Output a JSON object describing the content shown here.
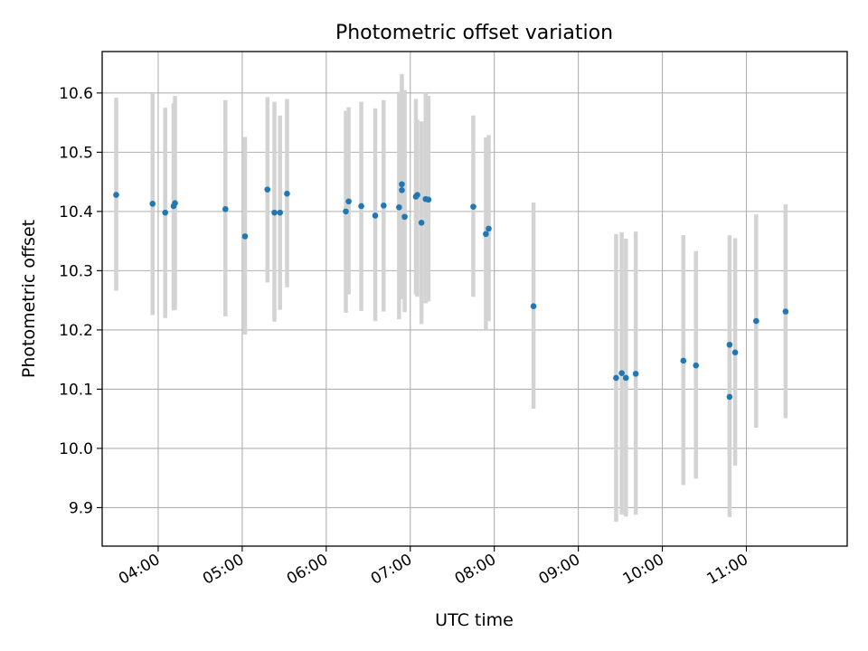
{
  "chart_data": {
    "type": "scatter",
    "title": "Photometric offset variation",
    "xlabel": "UTC time",
    "ylabel": "Photometric offset",
    "grid": true,
    "xlim": [
      "03:20",
      "12:12"
    ],
    "ylim": [
      9.835,
      10.67
    ],
    "x_ticks": [
      "04:00",
      "05:00",
      "06:00",
      "07:00",
      "08:00",
      "09:00",
      "10:00",
      "11:00"
    ],
    "y_ticks": [
      "9.9",
      "10.0",
      "10.1",
      "10.2",
      "10.3",
      "10.4",
      "10.5",
      "10.6"
    ],
    "series": [
      {
        "marker_color": "#1f77b4",
        "errorbar_color": "#d3d3d3",
        "points": [
          {
            "x": "03:30",
            "y": 10.428,
            "ymin": 10.266,
            "ymax": 10.592
          },
          {
            "x": "03:56",
            "y": 10.413,
            "ymin": 10.225,
            "ymax": 10.6
          },
          {
            "x": "04:05",
            "y": 10.398,
            "ymin": 10.22,
            "ymax": 10.575
          },
          {
            "x": "04:11",
            "y": 10.409,
            "ymin": 10.233,
            "ymax": 10.583
          },
          {
            "x": "04:12",
            "y": 10.414,
            "ymin": 10.234,
            "ymax": 10.595
          },
          {
            "x": "04:48",
            "y": 10.404,
            "ymin": 10.223,
            "ymax": 10.588
          },
          {
            "x": "05:02",
            "y": 10.358,
            "ymin": 10.192,
            "ymax": 10.526
          },
          {
            "x": "05:18",
            "y": 10.437,
            "ymin": 10.28,
            "ymax": 10.593
          },
          {
            "x": "05:23",
            "y": 10.398,
            "ymin": 10.214,
            "ymax": 10.585
          },
          {
            "x": "05:27",
            "y": 10.398,
            "ymin": 10.234,
            "ymax": 10.562
          },
          {
            "x": "05:32",
            "y": 10.43,
            "ymin": 10.272,
            "ymax": 10.59
          },
          {
            "x": "06:14",
            "y": 10.4,
            "ymin": 10.229,
            "ymax": 10.57
          },
          {
            "x": "06:16",
            "y": 10.417,
            "ymin": 10.26,
            "ymax": 10.576
          },
          {
            "x": "06:25",
            "y": 10.409,
            "ymin": 10.232,
            "ymax": 10.585
          },
          {
            "x": "06:35",
            "y": 10.393,
            "ymin": 10.215,
            "ymax": 10.574
          },
          {
            "x": "06:41",
            "y": 10.41,
            "ymin": 10.231,
            "ymax": 10.588
          },
          {
            "x": "06:52",
            "y": 10.407,
            "ymin": 10.218,
            "ymax": 10.602
          },
          {
            "x": "06:54",
            "y": 10.446,
            "ymin": 10.257,
            "ymax": 10.632
          },
          {
            "x": "06:54",
            "y": 10.436,
            "ymin": 10.252,
            "ymax": 10.622
          },
          {
            "x": "06:56",
            "y": 10.391,
            "ymin": 10.23,
            "ymax": 10.605
          },
          {
            "x": "07:04",
            "y": 10.425,
            "ymin": 10.26,
            "ymax": 10.59
          },
          {
            "x": "07:05",
            "y": 10.428,
            "ymin": 10.256,
            "ymax": 10.555
          },
          {
            "x": "07:08",
            "y": 10.381,
            "ymin": 10.21,
            "ymax": 10.552
          },
          {
            "x": "07:11",
            "y": 10.421,
            "ymin": 10.245,
            "ymax": 10.6
          },
          {
            "x": "07:13",
            "y": 10.42,
            "ymin": 10.248,
            "ymax": 10.595
          },
          {
            "x": "07:45",
            "y": 10.408,
            "ymin": 10.256,
            "ymax": 10.562
          },
          {
            "x": "07:54",
            "y": 10.362,
            "ymin": 10.2,
            "ymax": 10.525
          },
          {
            "x": "07:56",
            "y": 10.371,
            "ymin": 10.215,
            "ymax": 10.529
          },
          {
            "x": "08:28",
            "y": 10.24,
            "ymin": 10.067,
            "ymax": 10.415
          },
          {
            "x": "09:27",
            "y": 10.119,
            "ymin": 9.876,
            "ymax": 10.362
          },
          {
            "x": "09:31",
            "y": 10.127,
            "ymin": 9.888,
            "ymax": 10.365
          },
          {
            "x": "09:34",
            "y": 10.119,
            "ymin": 9.885,
            "ymax": 10.354
          },
          {
            "x": "09:41",
            "y": 10.126,
            "ymin": 9.888,
            "ymax": 10.366
          },
          {
            "x": "10:15",
            "y": 10.148,
            "ymin": 9.938,
            "ymax": 10.36
          },
          {
            "x": "10:24",
            "y": 10.14,
            "ymin": 9.949,
            "ymax": 10.333
          },
          {
            "x": "10:48",
            "y": 10.087,
            "ymin": 9.884,
            "ymax": 10.3
          },
          {
            "x": "10:48",
            "y": 10.175,
            "ymin": 9.985,
            "ymax": 10.36
          },
          {
            "x": "10:52",
            "y": 10.162,
            "ymin": 9.971,
            "ymax": 10.355
          },
          {
            "x": "11:07",
            "y": 10.215,
            "ymin": 10.035,
            "ymax": 10.395
          },
          {
            "x": "11:28",
            "y": 10.231,
            "ymin": 10.051,
            "ymax": 10.412
          }
        ]
      }
    ]
  }
}
